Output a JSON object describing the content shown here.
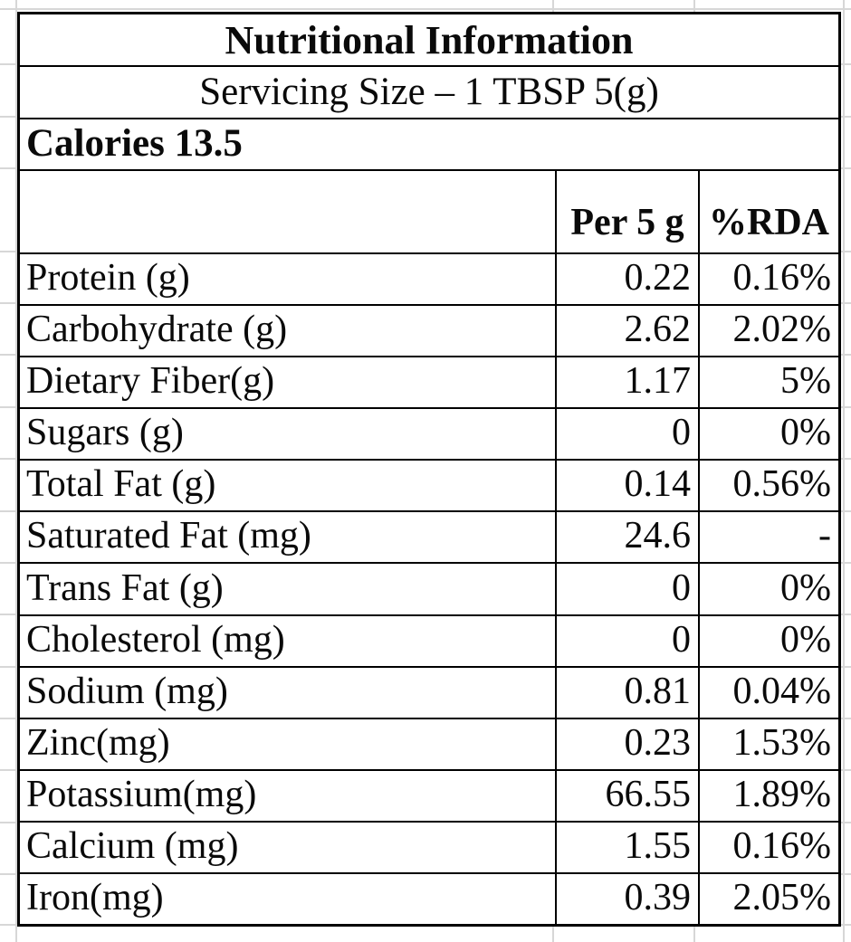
{
  "colors": {
    "gridline": "#d7d7d7",
    "table_border": "#000000",
    "text": "#0a0a0a",
    "background": "#ffffff"
  },
  "table": {
    "title": "Nutritional Information",
    "serving": "Servicing Size – 1 TBSP 5(g)",
    "calories": "Calories 13.5",
    "header": {
      "col1": "",
      "col2": "Per 5 g",
      "col3": "%RDA"
    },
    "rows": [
      {
        "label": "Protein (g)",
        "per5g": "0.22",
        "rda": "0.16%"
      },
      {
        "label": "Carbohydrate (g)",
        "per5g": "2.62",
        "rda": "2.02%"
      },
      {
        "label": "Dietary Fiber(g)",
        "per5g": "1.17",
        "rda": "5%"
      },
      {
        "label": "Sugars (g)",
        "per5g": "0",
        "rda": "0%"
      },
      {
        "label": "Total Fat (g)",
        "per5g": "0.14",
        "rda": "0.56%"
      },
      {
        "label": "Saturated Fat (mg)",
        "per5g": "24.6",
        "rda": "-"
      },
      {
        "label": "Trans Fat (g)",
        "per5g": "0",
        "rda": "0%"
      },
      {
        "label": "Cholesterol (mg)",
        "per5g": "0",
        "rda": "0%"
      },
      {
        "label": "Sodium (mg)",
        "per5g": "0.81",
        "rda": "0.04%"
      },
      {
        "label": "Zinc(mg)",
        "per5g": "0.23",
        "rda": "1.53%"
      },
      {
        "label": "Potassium(mg)",
        "per5g": "66.55",
        "rda": "1.89%"
      },
      {
        "label": "Calcium (mg)",
        "per5g": "1.55",
        "rda": "0.16%"
      },
      {
        "label": "Iron(mg)",
        "per5g": "0.39",
        "rda": "2.05%"
      }
    ]
  }
}
